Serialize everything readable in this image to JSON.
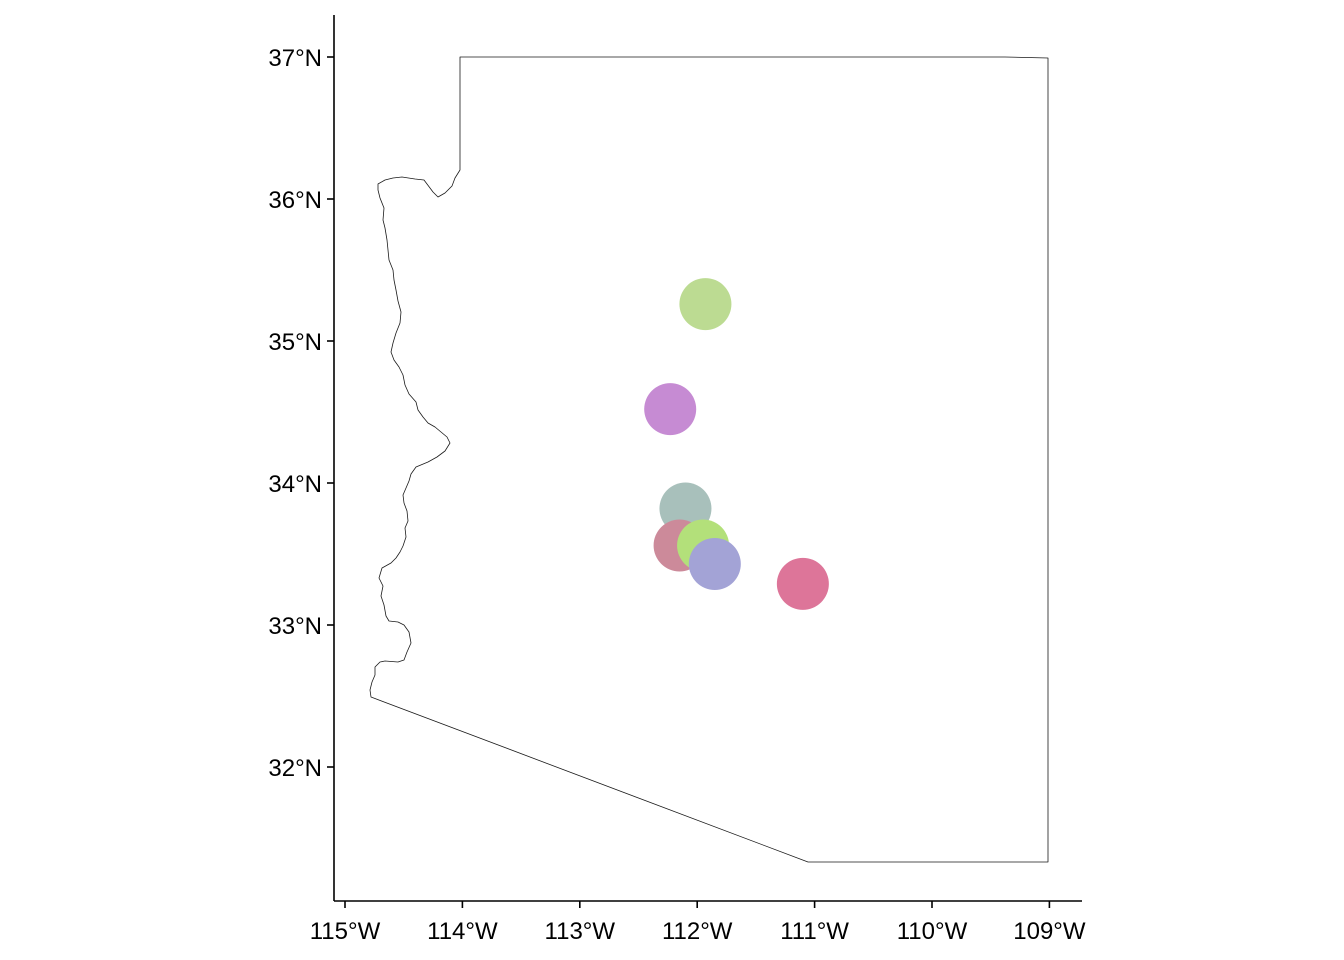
{
  "chart_data": {
    "type": "scatter",
    "title": "",
    "xlabel": "",
    "ylabel": "",
    "xlim": [
      -115.1,
      -108.8
    ],
    "ylim": [
      31.1,
      37.3
    ],
    "x_ticks": [
      {
        "value": -115,
        "label": "115°W"
      },
      {
        "value": -114,
        "label": "114°W"
      },
      {
        "value": -113,
        "label": "113°W"
      },
      {
        "value": -112,
        "label": "112°W"
      },
      {
        "value": -111,
        "label": "111°W"
      },
      {
        "value": -110,
        "label": "110°W"
      },
      {
        "value": -109,
        "label": "109°W"
      }
    ],
    "y_ticks": [
      {
        "value": 32,
        "label": "32°N"
      },
      {
        "value": 33,
        "label": "33°N"
      },
      {
        "value": 34,
        "label": "34°N"
      },
      {
        "value": 35,
        "label": "35°N"
      },
      {
        "value": 36,
        "label": "36°N"
      },
      {
        "value": 37,
        "label": "37°N"
      }
    ],
    "grid": false,
    "legend": "none",
    "points": [
      {
        "lon": -111.93,
        "lat": 35.26,
        "color": "#bcdb92"
      },
      {
        "lon": -112.23,
        "lat": 34.52,
        "color": "#c68bd3"
      },
      {
        "lon": -112.1,
        "lat": 33.82,
        "color": "#a8c0bb"
      },
      {
        "lon": -112.15,
        "lat": 33.56,
        "color": "#cc8a9a"
      },
      {
        "lon": -111.95,
        "lat": 33.56,
        "color": "#b3e07a"
      },
      {
        "lon": -111.85,
        "lat": 33.43,
        "color": "#a3a3d6"
      },
      {
        "lon": -111.1,
        "lat": 33.29,
        "color": "#dd7599"
      }
    ]
  }
}
